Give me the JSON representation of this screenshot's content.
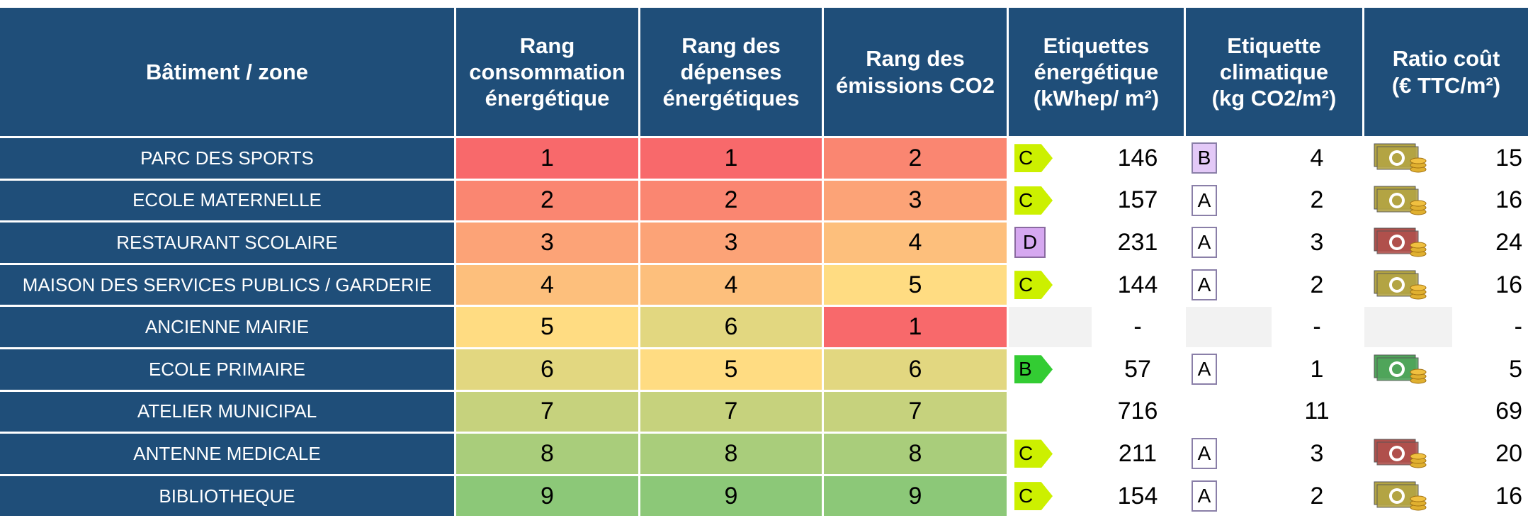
{
  "header": [
    [
      "Bâtiment / zone"
    ],
    [
      "Rang",
      "consommation",
      "énergétique"
    ],
    [
      "Rang des",
      "dépenses",
      "énergétiques"
    ],
    [
      "Rang des",
      "émissions CO2"
    ],
    [
      "Etiquettes",
      "énergétique",
      "(kWhep/ m²)"
    ],
    [
      "Etiquette",
      "climatique",
      "(kg CO2/m²)"
    ],
    [
      "Ratio coût",
      "(€ TTC/m²)"
    ]
  ],
  "rows": [
    {
      "name": "PARC DES SPORTS",
      "rank_consumption": 1,
      "rank_spending": 1,
      "rank_co2": 2,
      "energy_label": "C",
      "energy_value": 146,
      "climate_label": "B",
      "climate_value": 4,
      "cost_color": "#b3a443",
      "cost_value": 15
    },
    {
      "name": "ECOLE MATERNELLE",
      "rank_consumption": 2,
      "rank_spending": 2,
      "rank_co2": 3,
      "energy_label": "C",
      "energy_value": 157,
      "climate_label": "A",
      "climate_value": 2,
      "cost_color": "#b3a443",
      "cost_value": 16
    },
    {
      "name": "RESTAURANT SCOLAIRE",
      "rank_consumption": 3,
      "rank_spending": 3,
      "rank_co2": 4,
      "energy_label": "D",
      "energy_value": 231,
      "climate_label": "A",
      "climate_value": 3,
      "cost_color": "#b0504c",
      "cost_value": 24
    },
    {
      "name": "MAISON DES SERVICES PUBLICS / GARDERIE",
      "rank_consumption": 4,
      "rank_spending": 4,
      "rank_co2": 5,
      "energy_label": "C",
      "energy_value": 144,
      "climate_label": "A",
      "climate_value": 2,
      "cost_color": "#b3a443",
      "cost_value": 16
    },
    {
      "name": "ANCIENNE MAIRIE",
      "rank_consumption": 5,
      "rank_spending": 6,
      "rank_co2": 1,
      "energy_label": null,
      "energy_value": "-",
      "climate_label": null,
      "climate_value": "-",
      "cost_color": null,
      "cost_value": "-"
    },
    {
      "name": "ECOLE PRIMAIRE",
      "rank_consumption": 6,
      "rank_spending": 5,
      "rank_co2": 6,
      "energy_label": "B",
      "energy_value": 57,
      "climate_label": "A",
      "climate_value": 1,
      "cost_color": "#4fa55a",
      "cost_value": 5
    },
    {
      "name": "ATELIER MUNICIPAL",
      "rank_consumption": 7,
      "rank_spending": 7,
      "rank_co2": 7,
      "energy_label": null,
      "energy_value": 716,
      "climate_label": null,
      "climate_value": 11,
      "cost_color": null,
      "cost_value": 69
    },
    {
      "name": "ANTENNE MEDICALE",
      "rank_consumption": 8,
      "rank_spending": 8,
      "rank_co2": 8,
      "energy_label": "C",
      "energy_value": 211,
      "climate_label": "A",
      "climate_value": 3,
      "cost_color": "#b0504c",
      "cost_value": 20
    },
    {
      "name": "BIBLIOTHEQUE",
      "rank_consumption": 9,
      "rank_spending": 9,
      "rank_co2": 9,
      "energy_label": "C",
      "energy_value": 154,
      "climate_label": "A",
      "climate_value": 2,
      "cost_color": "#b3a443",
      "cost_value": 16
    }
  ]
}
